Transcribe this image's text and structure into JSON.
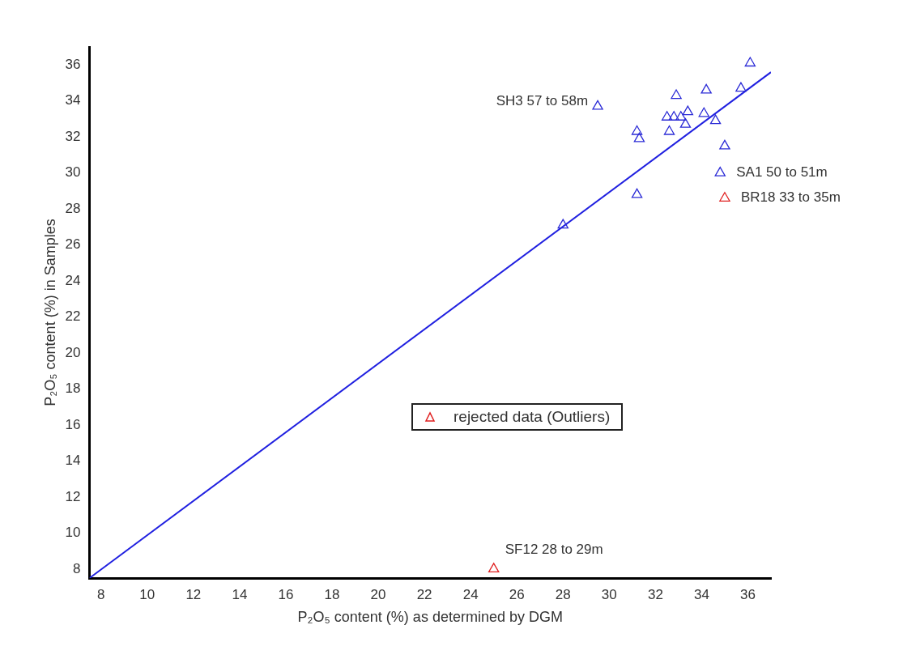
{
  "chart_data": {
    "type": "scatter",
    "xlabel": "P₂O₅ content (%) as determined by DGM",
    "ylabel": "P₂O₅ content (%) in Samples",
    "xlim": [
      7.5,
      37
    ],
    "ylim": [
      7.5,
      37
    ],
    "xticks": [
      8,
      10,
      12,
      14,
      16,
      18,
      20,
      22,
      24,
      26,
      28,
      30,
      32,
      34,
      36
    ],
    "yticks": [
      8,
      10,
      12,
      14,
      16,
      18,
      20,
      22,
      24,
      26,
      28,
      30,
      32,
      34,
      36
    ],
    "grid": false,
    "legend": "center",
    "marker": "triangle",
    "series": [
      {
        "type": "scatter",
        "color": "#2b2bd6",
        "x": [
          36.1,
          35.7,
          34.2,
          32.9,
          29.5,
          34.1,
          33.4,
          33.1,
          32.8,
          32.5,
          33.3,
          34.6,
          31.2,
          31.3,
          32.6,
          35.0,
          34.8,
          31.2,
          28.0
        ],
        "values": [
          36.1,
          34.7,
          34.6,
          34.3,
          33.7,
          33.3,
          33.4,
          33.1,
          33.1,
          33.1,
          32.7,
          32.9,
          32.3,
          31.9,
          32.3,
          31.5,
          30.0,
          28.8,
          27.1
        ]
      },
      {
        "type": "scatter",
        "name": "rejected data (Outliers)",
        "color": "#e02020",
        "x": [
          35.0,
          25.0
        ],
        "values": [
          28.6,
          8.0
        ]
      },
      {
        "type": "line",
        "color": "#2020e0",
        "marker": "none",
        "x": [
          7.5,
          37
        ],
        "values": [
          7.5,
          35.6
        ]
      }
    ],
    "annotations": [
      {
        "text": "SH3 57 to 58m",
        "x": 29.5,
        "y": 33.7
      },
      {
        "text": "SA1 50 to 51m",
        "x": 34.8,
        "y": 30.0
      },
      {
        "text": "BR18 33 to 35m",
        "x": 35.0,
        "y": 28.6
      },
      {
        "text": "SF12 28 to 29m",
        "x": 25.0,
        "y": 8.0
      }
    ]
  }
}
